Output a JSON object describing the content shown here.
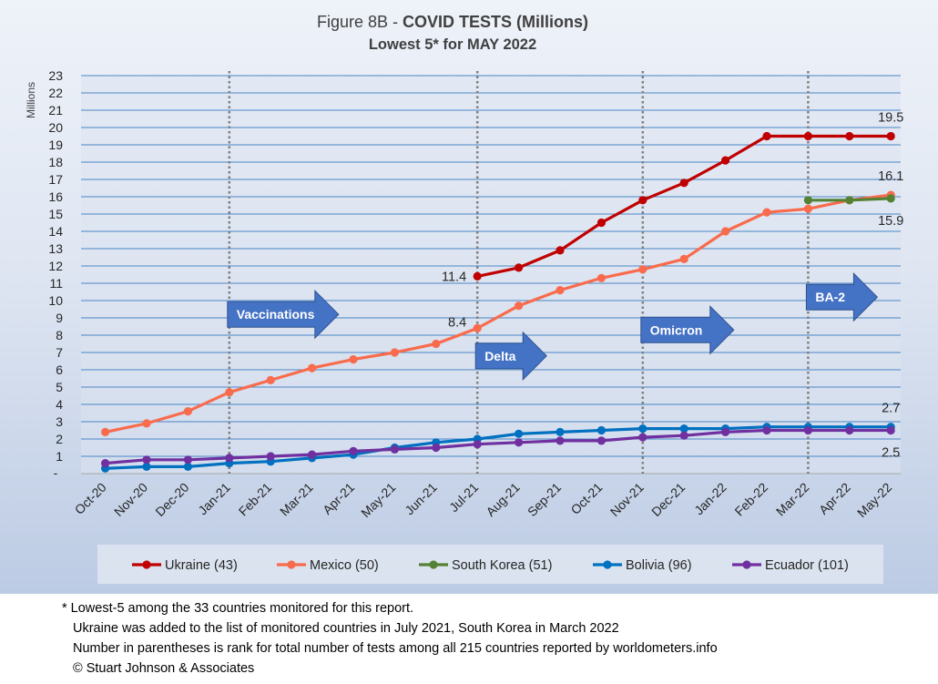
{
  "chart_data": {
    "type": "line",
    "title_prefix": "Figure 8B - ",
    "title_bold": "COVID TESTS (Millions)",
    "subtitle": "Lowest 5* for MAY 2022",
    "ylabel": "Millions",
    "ylim": [
      0,
      23
    ],
    "y_zero_label": "-",
    "y_ticks": [
      1,
      2,
      3,
      4,
      5,
      6,
      7,
      8,
      9,
      10,
      11,
      12,
      13,
      14,
      15,
      16,
      17,
      18,
      19,
      20,
      21,
      22,
      23
    ],
    "grid": true,
    "legend_position": "bottom",
    "categories": [
      "Oct-20",
      "Nov-20",
      "Dec-20",
      "Jan-21",
      "Feb-21",
      "Mar-21",
      "Apr-21",
      "May-21",
      "Jun-21",
      "Jul-21",
      "Aug-21",
      "Sep-21",
      "Oct-21",
      "Nov-21",
      "Dec-21",
      "Jan-22",
      "Feb-22",
      "Mar-22",
      "Apr-22",
      "May-22"
    ],
    "series": [
      {
        "name": "Ukraine (43)",
        "color": "#c00000",
        "values": [
          null,
          null,
          null,
          null,
          null,
          null,
          null,
          null,
          null,
          11.4,
          11.9,
          12.9,
          14.5,
          15.8,
          16.8,
          18.1,
          19.5,
          19.5,
          19.5,
          19.5
        ]
      },
      {
        "name": "Mexico (50)",
        "color": "#f96b4d",
        "values": [
          2.4,
          2.9,
          3.6,
          4.7,
          5.4,
          6.1,
          6.6,
          7.0,
          7.5,
          8.4,
          9.7,
          10.6,
          11.3,
          11.8,
          12.4,
          14.0,
          15.1,
          15.3,
          15.8,
          16.1
        ]
      },
      {
        "name": "South Korea (51)",
        "color": "#548235",
        "values": [
          null,
          null,
          null,
          null,
          null,
          null,
          null,
          null,
          null,
          null,
          null,
          null,
          null,
          null,
          null,
          null,
          null,
          15.8,
          15.8,
          15.9
        ]
      },
      {
        "name": "Bolivia (96)",
        "color": "#0070c0",
        "values": [
          0.3,
          0.4,
          0.4,
          0.6,
          0.7,
          0.9,
          1.1,
          1.5,
          1.8,
          2.0,
          2.3,
          2.4,
          2.5,
          2.6,
          2.6,
          2.6,
          2.7,
          2.7,
          2.7,
          2.7
        ]
      },
      {
        "name": "Ecuador (101)",
        "color": "#7030a0",
        "values": [
          0.6,
          0.8,
          0.8,
          0.9,
          1.0,
          1.1,
          1.3,
          1.4,
          1.5,
          1.7,
          1.8,
          1.9,
          1.9,
          2.1,
          2.2,
          2.4,
          2.5,
          2.5,
          2.5,
          2.5
        ]
      }
    ],
    "data_labels": [
      {
        "text": "11.4",
        "category": "Jul-21",
        "value": 11.4,
        "side": "left"
      },
      {
        "text": "8.4",
        "category": "Jul-21",
        "value": 8.4,
        "side": "left-above"
      },
      {
        "text": "19.5",
        "category": "May-22",
        "value": 19.5,
        "side": "above"
      },
      {
        "text": "16.1",
        "category": "May-22",
        "value": 16.1,
        "side": "above"
      },
      {
        "text": "15.9",
        "category": "May-22",
        "value": 15.9,
        "side": "below"
      },
      {
        "text": "2.7",
        "category": "May-22",
        "value": 2.7,
        "side": "above"
      },
      {
        "text": "2.5",
        "category": "May-22",
        "value": 2.5,
        "side": "below"
      }
    ],
    "event_lines": [
      {
        "name": "vaccinations",
        "category": "Jan-21"
      },
      {
        "name": "delta",
        "category": "Jul-21"
      },
      {
        "name": "omicron",
        "category": "Nov-21"
      },
      {
        "name": "ba2",
        "category": "Mar-22"
      }
    ],
    "annotations": [
      {
        "name": "vaccinations",
        "text": "Vaccinations",
        "category": "Jan-21",
        "value": 9.2
      },
      {
        "name": "delta",
        "text": "Delta",
        "category": "Jul-21",
        "value": 6.8
      },
      {
        "name": "omicron",
        "text": "Omicron",
        "category": "Nov-21",
        "value": 8.3
      },
      {
        "name": "ba2",
        "text": "BA-2",
        "category": "Mar-22",
        "value": 10.2
      }
    ],
    "accent_colors": {
      "arrow_fill": "#4472c4",
      "gridline": "#4a86c5",
      "event_line": "#7f7f7f"
    }
  },
  "footnotes": {
    "line1": "* Lowest-5 among the 33 countries monitored for this report.",
    "line2": "Ukraine was added to the list of monitored countries in July 2021, South Korea in March 2022",
    "line3": "Number in parentheses is rank for total number of tests among all 215 countries reported by worldometers.info",
    "line4": "© Stuart Johnson & Associates"
  }
}
